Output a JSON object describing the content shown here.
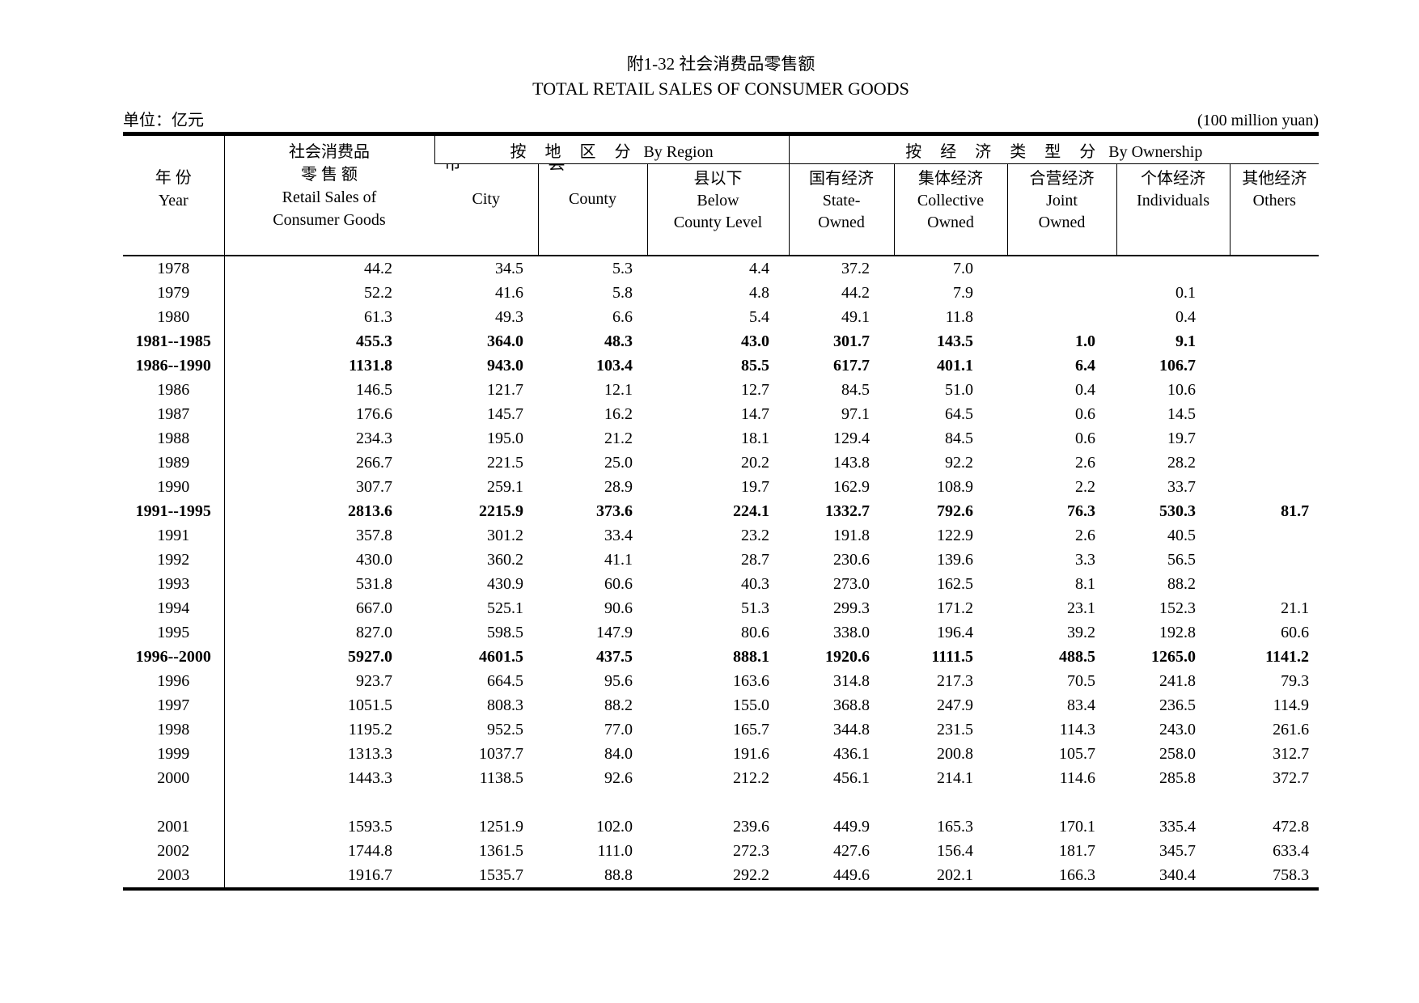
{
  "header": {
    "title_cn": "附1-32 社会消费品零售额",
    "title_en": "TOTAL RETAIL SALES OF CONSUMER GOODS",
    "unit_left": "单位：亿元",
    "unit_right": "(100 million yuan)"
  },
  "columns": {
    "year_cn": "年  份",
    "year_en": "Year",
    "retail_cn1": "社会消费品",
    "retail_cn2": "零 售 额",
    "retail_en1": "Retail Sales of",
    "retail_en2": "Consumer Goods",
    "region_group_cn": "按 地 区 分",
    "region_group_en": "By Region",
    "ownership_group_cn": "按 经 济 类 型 分",
    "ownership_group_en": "By Ownership",
    "city_cn": "市",
    "city_en": "City",
    "county_cn": "县",
    "county_en": "County",
    "below_cn": "县以下",
    "below_en1": "Below",
    "below_en2": "County Level",
    "state_cn": "国有经济",
    "state_en1": "State-",
    "state_en2": "Owned",
    "collective_cn": "集体经济",
    "collective_en1": "Collective",
    "collective_en2": "Owned",
    "joint_cn": "合营经济",
    "joint_en1": "Joint",
    "joint_en2": "Owned",
    "individuals_cn": "个体经济",
    "individuals_en": "Individuals",
    "others_cn": "其他经济",
    "others_en": "Others"
  },
  "table": {
    "rows": [
      {
        "year": "1978",
        "bold": false,
        "values": [
          "44.2",
          "34.5",
          "5.3",
          "4.4",
          "37.2",
          "7.0",
          "",
          "",
          ""
        ]
      },
      {
        "year": "1979",
        "bold": false,
        "values": [
          "52.2",
          "41.6",
          "5.8",
          "4.8",
          "44.2",
          "7.9",
          "",
          "0.1",
          ""
        ]
      },
      {
        "year": "1980",
        "bold": false,
        "values": [
          "61.3",
          "49.3",
          "6.6",
          "5.4",
          "49.1",
          "11.8",
          "",
          "0.4",
          ""
        ]
      },
      {
        "year": "1981--1985",
        "bold": true,
        "values": [
          "455.3",
          "364.0",
          "48.3",
          "43.0",
          "301.7",
          "143.5",
          "1.0",
          "9.1",
          ""
        ]
      },
      {
        "year": "1986--1990",
        "bold": true,
        "values": [
          "1131.8",
          "943.0",
          "103.4",
          "85.5",
          "617.7",
          "401.1",
          "6.4",
          "106.7",
          ""
        ]
      },
      {
        "year": "1986",
        "bold": false,
        "values": [
          "146.5",
          "121.7",
          "12.1",
          "12.7",
          "84.5",
          "51.0",
          "0.4",
          "10.6",
          ""
        ]
      },
      {
        "year": "1987",
        "bold": false,
        "values": [
          "176.6",
          "145.7",
          "16.2",
          "14.7",
          "97.1",
          "64.5",
          "0.6",
          "14.5",
          ""
        ]
      },
      {
        "year": "1988",
        "bold": false,
        "values": [
          "234.3",
          "195.0",
          "21.2",
          "18.1",
          "129.4",
          "84.5",
          "0.6",
          "19.7",
          ""
        ]
      },
      {
        "year": "1989",
        "bold": false,
        "values": [
          "266.7",
          "221.5",
          "25.0",
          "20.2",
          "143.8",
          "92.2",
          "2.6",
          "28.2",
          ""
        ]
      },
      {
        "year": "1990",
        "bold": false,
        "values": [
          "307.7",
          "259.1",
          "28.9",
          "19.7",
          "162.9",
          "108.9",
          "2.2",
          "33.7",
          ""
        ]
      },
      {
        "year": "1991--1995",
        "bold": true,
        "values": [
          "2813.6",
          "2215.9",
          "373.6",
          "224.1",
          "1332.7",
          "792.6",
          "76.3",
          "530.3",
          "81.7"
        ]
      },
      {
        "year": "1991",
        "bold": false,
        "values": [
          "357.8",
          "301.2",
          "33.4",
          "23.2",
          "191.8",
          "122.9",
          "2.6",
          "40.5",
          ""
        ]
      },
      {
        "year": "1992",
        "bold": false,
        "values": [
          "430.0",
          "360.2",
          "41.1",
          "28.7",
          "230.6",
          "139.6",
          "3.3",
          "56.5",
          ""
        ]
      },
      {
        "year": "1993",
        "bold": false,
        "values": [
          "531.8",
          "430.9",
          "60.6",
          "40.3",
          "273.0",
          "162.5",
          "8.1",
          "88.2",
          ""
        ]
      },
      {
        "year": "1994",
        "bold": false,
        "values": [
          "667.0",
          "525.1",
          "90.6",
          "51.3",
          "299.3",
          "171.2",
          "23.1",
          "152.3",
          "21.1"
        ]
      },
      {
        "year": "1995",
        "bold": false,
        "values": [
          "827.0",
          "598.5",
          "147.9",
          "80.6",
          "338.0",
          "196.4",
          "39.2",
          "192.8",
          "60.6"
        ]
      },
      {
        "year": "1996--2000",
        "bold": true,
        "values": [
          "5927.0",
          "4601.5",
          "437.5",
          "888.1",
          "1920.6",
          "1111.5",
          "488.5",
          "1265.0",
          "1141.2"
        ]
      },
      {
        "year": "1996",
        "bold": false,
        "values": [
          "923.7",
          "664.5",
          "95.6",
          "163.6",
          "314.8",
          "217.3",
          "70.5",
          "241.8",
          "79.3"
        ]
      },
      {
        "year": "1997",
        "bold": false,
        "values": [
          "1051.5",
          "808.3",
          "88.2",
          "155.0",
          "368.8",
          "247.9",
          "83.4",
          "236.5",
          "114.9"
        ]
      },
      {
        "year": "1998",
        "bold": false,
        "values": [
          "1195.2",
          "952.5",
          "77.0",
          "165.7",
          "344.8",
          "231.5",
          "114.3",
          "243.0",
          "261.6"
        ]
      },
      {
        "year": "1999",
        "bold": false,
        "values": [
          "1313.3",
          "1037.7",
          "84.0",
          "191.6",
          "436.1",
          "200.8",
          "105.7",
          "258.0",
          "312.7"
        ]
      },
      {
        "year": "2000",
        "bold": false,
        "values": [
          "1443.3",
          "1138.5",
          "92.6",
          "212.2",
          "456.1",
          "214.1",
          "114.6",
          "285.8",
          "372.7"
        ]
      },
      {
        "year": "",
        "bold": false,
        "blank": true,
        "values": [
          "",
          "",
          "",
          "",
          "",
          "",
          "",
          "",
          ""
        ]
      },
      {
        "year": "2001",
        "bold": false,
        "values": [
          "1593.5",
          "1251.9",
          "102.0",
          "239.6",
          "449.9",
          "165.3",
          "170.1",
          "335.4",
          "472.8"
        ]
      },
      {
        "year": "2002",
        "bold": false,
        "values": [
          "1744.8",
          "1361.5",
          "111.0",
          "272.3",
          "427.6",
          "156.4",
          "181.7",
          "345.7",
          "633.4"
        ]
      },
      {
        "year": "2003",
        "bold": false,
        "values": [
          "1916.7",
          "1535.7",
          "88.8",
          "292.2",
          "449.6",
          "202.1",
          "166.3",
          "340.4",
          "758.3"
        ]
      }
    ]
  }
}
